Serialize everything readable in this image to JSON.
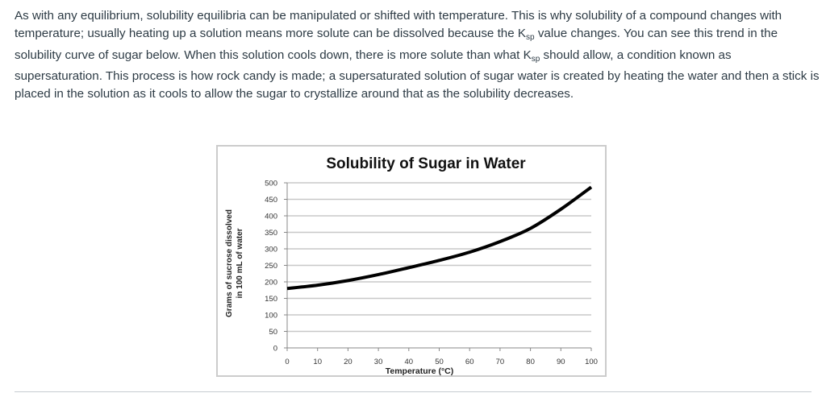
{
  "paragraph": {
    "p1": "As with any equilibrium, solubility equilibria can be manipulated or shifted with temperature. This is why solubility of a compound changes with temperature; usually heating up a solution means more solute can be dissolved because the K",
    "sub1": "sp",
    "p2": " value changes. You can see this trend in the solubility curve of sugar below. When this solution cools down, there is more solute than what K",
    "sub2": "sp",
    "p3": " should allow, a condition known as supersaturation. This process is how rock candy is made; a supersaturated solution of sugar water is created by heating the water and then a stick is placed in the solution as it cools to allow the sugar to crystallize around that as the solubility decreases."
  },
  "chart_data": {
    "type": "line",
    "title": "Solubility of Sugar in Water",
    "xlabel": "Temperature (°C)",
    "ylabel_line1": "Grams of sucrose dissolved",
    "ylabel_line2": "in 100 mL of water",
    "xlim": [
      0,
      100
    ],
    "ylim": [
      0,
      500
    ],
    "xticks": [
      "0",
      "10",
      "20",
      "30",
      "40",
      "50",
      "60",
      "70",
      "80",
      "90",
      "100"
    ],
    "yticks": [
      "0",
      "50",
      "100",
      "150",
      "200",
      "250",
      "300",
      "350",
      "400",
      "450",
      "500"
    ],
    "grid": true,
    "series": [
      {
        "name": "Sucrose",
        "x": [
          0,
          10,
          20,
          30,
          40,
          50,
          60,
          70,
          80,
          90,
          100
        ],
        "values": [
          180,
          190,
          204,
          222,
          243,
          265,
          290,
          322,
          362,
          420,
          487
        ]
      }
    ]
  }
}
